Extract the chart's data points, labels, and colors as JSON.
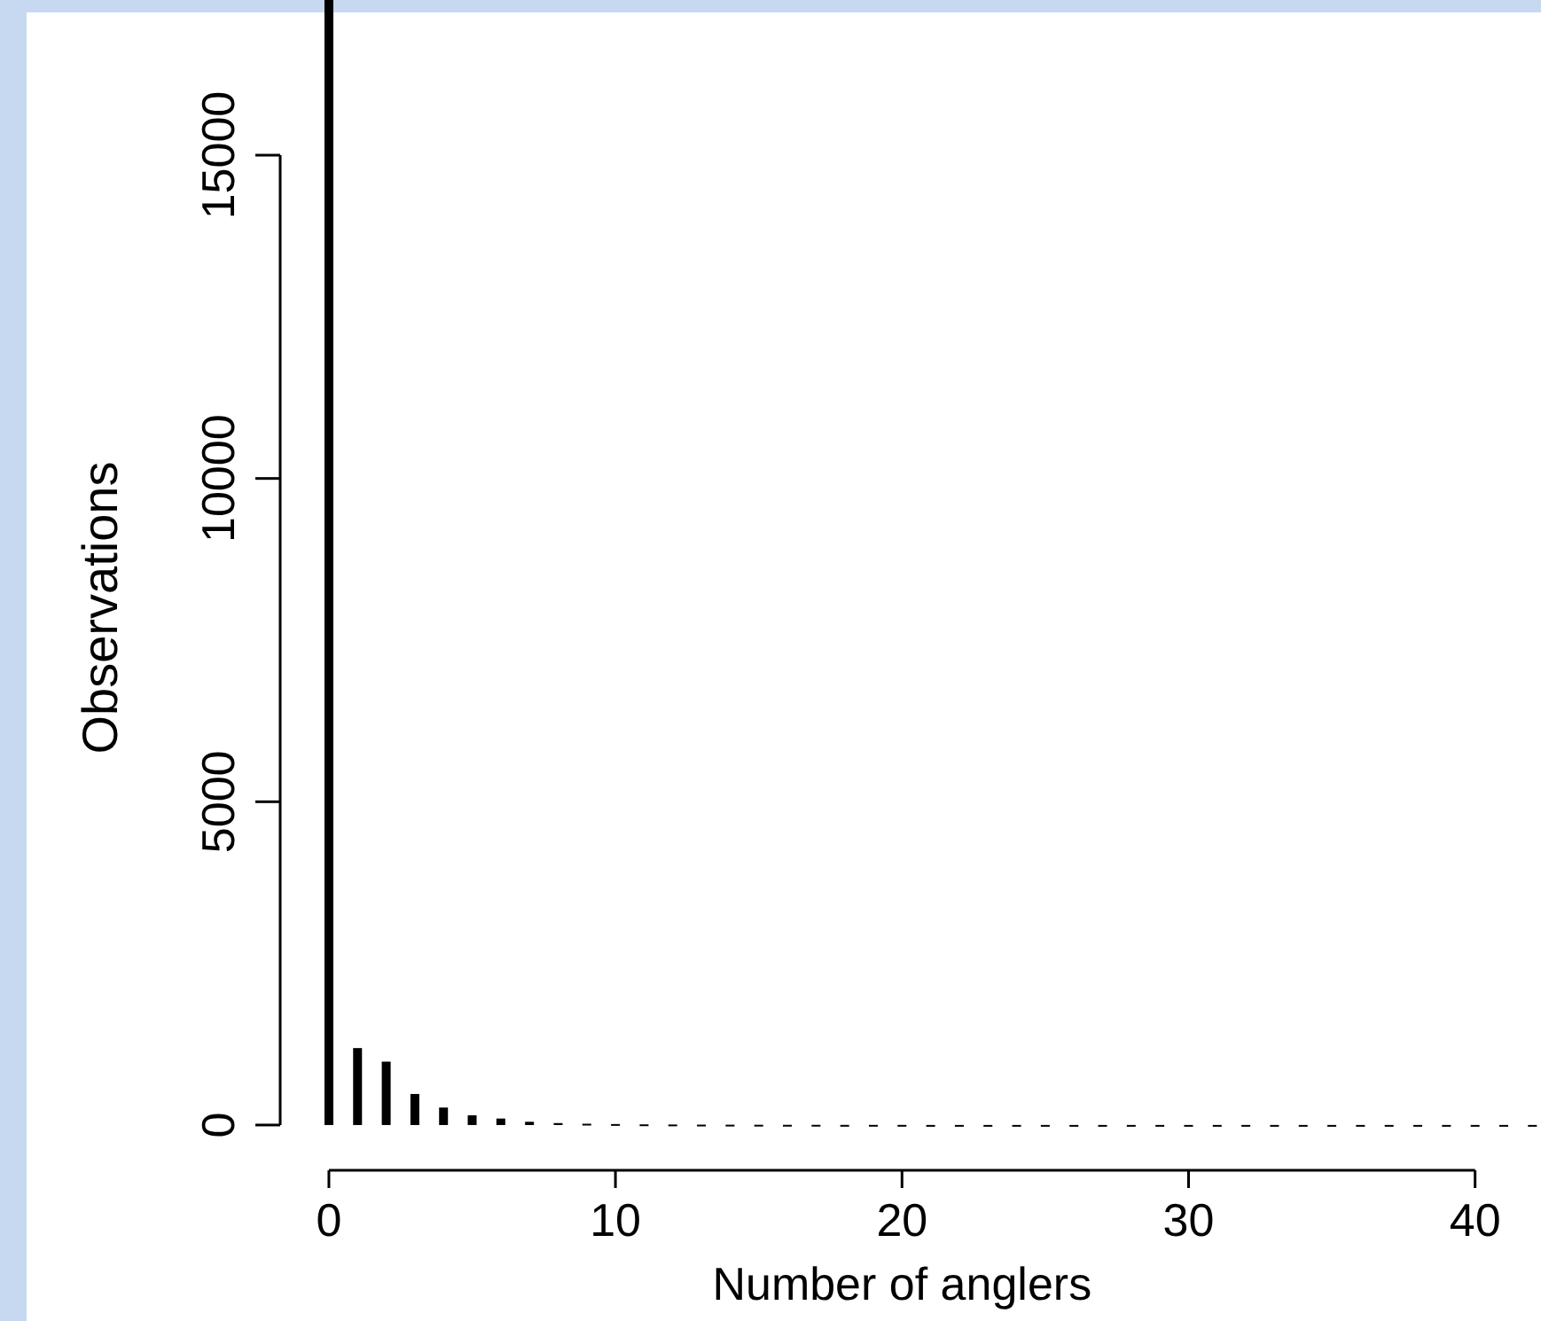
{
  "chart_data": {
    "type": "bar",
    "xlabel": "Number of anglers",
    "ylabel": "Observations",
    "x": [
      0,
      1,
      2,
      3,
      4,
      5,
      6,
      7,
      8,
      9,
      10,
      11,
      12,
      13,
      14,
      15,
      16,
      17,
      18,
      19,
      20,
      21,
      22,
      23,
      24,
      25,
      26,
      27,
      28,
      29,
      30,
      31,
      32,
      33,
      34,
      35,
      36,
      37,
      38,
      39,
      40,
      41,
      42
    ],
    "values": [
      17400,
      1190,
      980,
      480,
      270,
      150,
      100,
      50,
      30,
      20,
      15,
      10,
      8,
      6,
      5,
      4,
      3,
      3,
      2,
      2,
      2,
      1,
      1,
      1,
      1,
      1,
      1,
      1,
      1,
      1,
      1,
      1,
      1,
      1,
      1,
      1,
      1,
      1,
      1,
      1,
      1,
      1,
      1
    ],
    "color": "#000000",
    "xlim": [
      -1.7,
      42.3
    ],
    "xticks": [
      0,
      10,
      20,
      30,
      40
    ],
    "ylim": [
      -700,
      17400
    ],
    "yticks": [
      0,
      5000,
      10000,
      15000
    ],
    "grid": false
  }
}
